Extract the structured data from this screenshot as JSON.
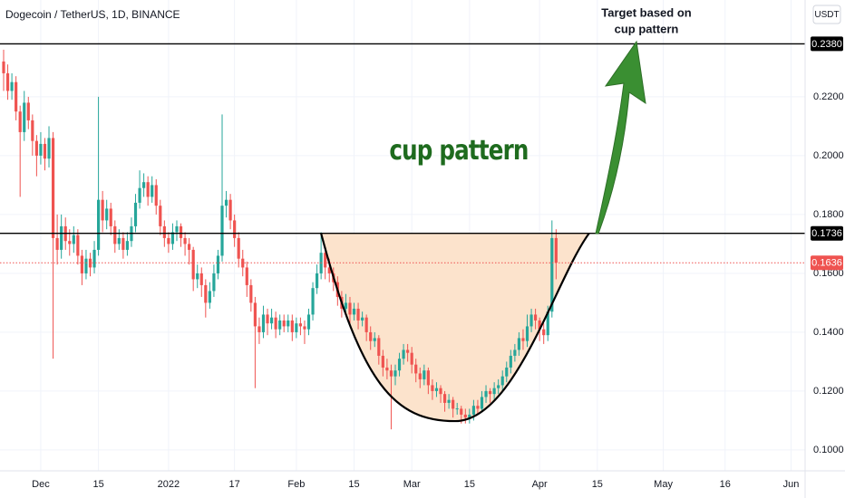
{
  "chart_data": {
    "type": "candlestick",
    "title": "Dogecoin / TetherUS, 1D, BINANCE",
    "currency": "USDT",
    "annotations": [
      "cup pattern",
      "Target based on",
      "cup pattern"
    ],
    "up_color": "#26a69a",
    "down_color": "#ef5350",
    "xlim": [
      -0.88,
      194.4
    ],
    "ylim": [
      0.0929,
      0.2529
    ],
    "yticks": [
      {
        "value": 0.1,
        "label": "0.1000"
      },
      {
        "value": 0.12,
        "label": "0.1200"
      },
      {
        "value": 0.14,
        "label": "0.1400"
      },
      {
        "value": 0.16,
        "label": "0.1600"
      },
      {
        "value": 0.18,
        "label": "0.1800"
      },
      {
        "value": 0.2,
        "label": "0.2000"
      },
      {
        "value": 0.22,
        "label": "0.2200"
      }
    ],
    "xticks": [
      {
        "value": 9,
        "label": "Dec"
      },
      {
        "value": 23,
        "label": "15"
      },
      {
        "value": 40,
        "label": "2022"
      },
      {
        "value": 56,
        "label": "17"
      },
      {
        "value": 71,
        "label": "Feb"
      },
      {
        "value": 85,
        "label": "15"
      },
      {
        "value": 99,
        "label": "Mar"
      },
      {
        "value": 113,
        "label": "15"
      },
      {
        "value": 130,
        "label": "Apr"
      },
      {
        "value": 144,
        "label": "15"
      },
      {
        "value": 160,
        "label": "May"
      },
      {
        "value": 175,
        "label": "16"
      },
      {
        "value": 191,
        "label": "Jun"
      }
    ],
    "hlines": [
      {
        "value": 0.238,
        "label": "0.2380",
        "color": "#000000",
        "style": "solid"
      },
      {
        "value": 0.1736,
        "label": "0.1736",
        "color": "#000000",
        "style": "solid"
      },
      {
        "value": 0.1636,
        "label": "0.1636",
        "color": "#ef5350",
        "style": "dotted"
      }
    ],
    "cup": {
      "x": [
        77,
        109.5,
        142
      ],
      "y": [
        0.1736,
        0.1098,
        0.1736
      ],
      "fill": "#fce3cc"
    },
    "ohlc": [
      [
        0.232,
        0.236,
        0.222,
        0.228
      ],
      [
        0.228,
        0.231,
        0.219,
        0.222
      ],
      [
        0.222,
        0.228,
        0.219,
        0.225
      ],
      [
        0.225,
        0.227,
        0.212,
        0.215
      ],
      [
        0.215,
        0.217,
        0.186,
        0.208
      ],
      [
        0.208,
        0.222,
        0.205,
        0.218
      ],
      [
        0.218,
        0.22,
        0.209,
        0.212
      ],
      [
        0.212,
        0.214,
        0.2,
        0.205
      ],
      [
        0.205,
        0.207,
        0.193,
        0.2
      ],
      [
        0.2,
        0.208,
        0.197,
        0.204
      ],
      [
        0.204,
        0.206,
        0.195,
        0.199
      ],
      [
        0.199,
        0.21,
        0.196,
        0.206
      ],
      [
        0.206,
        0.208,
        0.131,
        0.172
      ],
      [
        0.172,
        0.18,
        0.163,
        0.168
      ],
      [
        0.168,
        0.18,
        0.165,
        0.176
      ],
      [
        0.176,
        0.179,
        0.168,
        0.171
      ],
      [
        0.171,
        0.175,
        0.166,
        0.17
      ],
      [
        0.17,
        0.176,
        0.167,
        0.173
      ],
      [
        0.173,
        0.175,
        0.163,
        0.166
      ],
      [
        0.166,
        0.168,
        0.156,
        0.16
      ],
      [
        0.16,
        0.168,
        0.158,
        0.165
      ],
      [
        0.165,
        0.167,
        0.159,
        0.162
      ],
      [
        0.162,
        0.171,
        0.16,
        0.168
      ],
      [
        0.168,
        0.22,
        0.166,
        0.185
      ],
      [
        0.185,
        0.188,
        0.174,
        0.178
      ],
      [
        0.178,
        0.185,
        0.175,
        0.182
      ],
      [
        0.182,
        0.184,
        0.173,
        0.176
      ],
      [
        0.176,
        0.178,
        0.167,
        0.17
      ],
      [
        0.17,
        0.175,
        0.168,
        0.172
      ],
      [
        0.172,
        0.174,
        0.165,
        0.168
      ],
      [
        0.168,
        0.174,
        0.166,
        0.171
      ],
      [
        0.171,
        0.179,
        0.169,
        0.176
      ],
      [
        0.176,
        0.187,
        0.174,
        0.184
      ],
      [
        0.184,
        0.195,
        0.182,
        0.189
      ],
      [
        0.189,
        0.194,
        0.186,
        0.191
      ],
      [
        0.191,
        0.193,
        0.183,
        0.186
      ],
      [
        0.186,
        0.193,
        0.184,
        0.19
      ],
      [
        0.19,
        0.192,
        0.18,
        0.183
      ],
      [
        0.183,
        0.185,
        0.173,
        0.176
      ],
      [
        0.176,
        0.178,
        0.169,
        0.172
      ],
      [
        0.172,
        0.174,
        0.167,
        0.17
      ],
      [
        0.17,
        0.177,
        0.168,
        0.174
      ],
      [
        0.174,
        0.178,
        0.171,
        0.176
      ],
      [
        0.176,
        0.177,
        0.169,
        0.172
      ],
      [
        0.172,
        0.174,
        0.166,
        0.17
      ],
      [
        0.17,
        0.172,
        0.163,
        0.168
      ],
      [
        0.168,
        0.169,
        0.154,
        0.158
      ],
      [
        0.158,
        0.163,
        0.155,
        0.16
      ],
      [
        0.16,
        0.162,
        0.152,
        0.156
      ],
      [
        0.156,
        0.158,
        0.145,
        0.15
      ],
      [
        0.15,
        0.157,
        0.148,
        0.154
      ],
      [
        0.154,
        0.163,
        0.152,
        0.16
      ],
      [
        0.16,
        0.168,
        0.158,
        0.166
      ],
      [
        0.166,
        0.214,
        0.164,
        0.183
      ],
      [
        0.183,
        0.188,
        0.179,
        0.185
      ],
      [
        0.185,
        0.187,
        0.175,
        0.178
      ],
      [
        0.178,
        0.18,
        0.169,
        0.172
      ],
      [
        0.172,
        0.174,
        0.162,
        0.165
      ],
      [
        0.165,
        0.168,
        0.159,
        0.162
      ],
      [
        0.162,
        0.164,
        0.152,
        0.156
      ],
      [
        0.156,
        0.158,
        0.147,
        0.15
      ],
      [
        0.15,
        0.152,
        0.121,
        0.142
      ],
      [
        0.142,
        0.145,
        0.136,
        0.14
      ],
      [
        0.14,
        0.149,
        0.138,
        0.146
      ],
      [
        0.146,
        0.148,
        0.139,
        0.143
      ],
      [
        0.143,
        0.148,
        0.141,
        0.145
      ],
      [
        0.145,
        0.147,
        0.138,
        0.141
      ],
      [
        0.141,
        0.146,
        0.139,
        0.144
      ],
      [
        0.144,
        0.146,
        0.14,
        0.142
      ],
      [
        0.142,
        0.146,
        0.14,
        0.144
      ],
      [
        0.144,
        0.146,
        0.137,
        0.14
      ],
      [
        0.14,
        0.145,
        0.138,
        0.143
      ],
      [
        0.143,
        0.145,
        0.139,
        0.142
      ],
      [
        0.142,
        0.144,
        0.136,
        0.141
      ],
      [
        0.141,
        0.148,
        0.139,
        0.146
      ],
      [
        0.146,
        0.157,
        0.144,
        0.155
      ],
      [
        0.155,
        0.163,
        0.153,
        0.16
      ],
      [
        0.16,
        0.174,
        0.158,
        0.167
      ],
      [
        0.167,
        0.169,
        0.158,
        0.162
      ],
      [
        0.162,
        0.165,
        0.157,
        0.16
      ],
      [
        0.16,
        0.162,
        0.154,
        0.157
      ],
      [
        0.157,
        0.159,
        0.149,
        0.152
      ],
      [
        0.152,
        0.154,
        0.145,
        0.148
      ],
      [
        0.148,
        0.153,
        0.146,
        0.15
      ],
      [
        0.15,
        0.152,
        0.143,
        0.146
      ],
      [
        0.146,
        0.15,
        0.144,
        0.148
      ],
      [
        0.148,
        0.15,
        0.141,
        0.144
      ],
      [
        0.144,
        0.147,
        0.142,
        0.145
      ],
      [
        0.145,
        0.146,
        0.137,
        0.14
      ],
      [
        0.14,
        0.142,
        0.134,
        0.137
      ],
      [
        0.137,
        0.14,
        0.135,
        0.138
      ],
      [
        0.138,
        0.139,
        0.129,
        0.132
      ],
      [
        0.132,
        0.134,
        0.125,
        0.128
      ],
      [
        0.128,
        0.131,
        0.124,
        0.127
      ],
      [
        0.127,
        0.129,
        0.107,
        0.125
      ],
      [
        0.125,
        0.129,
        0.122,
        0.127
      ],
      [
        0.127,
        0.133,
        0.125,
        0.131
      ],
      [
        0.131,
        0.136,
        0.129,
        0.134
      ],
      [
        0.134,
        0.136,
        0.13,
        0.133
      ],
      [
        0.133,
        0.135,
        0.126,
        0.129
      ],
      [
        0.129,
        0.131,
        0.123,
        0.126
      ],
      [
        0.126,
        0.128,
        0.121,
        0.124
      ],
      [
        0.124,
        0.129,
        0.122,
        0.127
      ],
      [
        0.127,
        0.128,
        0.119,
        0.122
      ],
      [
        0.122,
        0.124,
        0.117,
        0.12
      ],
      [
        0.12,
        0.123,
        0.118,
        0.121
      ],
      [
        0.121,
        0.122,
        0.116,
        0.119
      ],
      [
        0.119,
        0.12,
        0.113,
        0.116
      ],
      [
        0.116,
        0.119,
        0.114,
        0.117
      ],
      [
        0.117,
        0.118,
        0.111,
        0.114
      ],
      [
        0.114,
        0.116,
        0.112,
        0.1141
      ],
      [
        0.114,
        0.115,
        0.109,
        0.112
      ],
      [
        0.112,
        0.114,
        0.109,
        0.111
      ],
      [
        0.111,
        0.114,
        0.109,
        0.112
      ],
      [
        0.112,
        0.117,
        0.11,
        0.115
      ],
      [
        0.115,
        0.117,
        0.112,
        0.114
      ],
      [
        0.114,
        0.12,
        0.113,
        0.118
      ],
      [
        0.118,
        0.122,
        0.116,
        0.12
      ],
      [
        0.12,
        0.121,
        0.116,
        0.119
      ],
      [
        0.119,
        0.123,
        0.117,
        0.121
      ],
      [
        0.121,
        0.124,
        0.119,
        0.122
      ],
      [
        0.122,
        0.127,
        0.12,
        0.125
      ],
      [
        0.125,
        0.13,
        0.123,
        0.128
      ],
      [
        0.128,
        0.134,
        0.126,
        0.132
      ],
      [
        0.132,
        0.136,
        0.13,
        0.134
      ],
      [
        0.134,
        0.14,
        0.132,
        0.138
      ],
      [
        0.138,
        0.141,
        0.134,
        0.137
      ],
      [
        0.137,
        0.146,
        0.135,
        0.142
      ],
      [
        0.142,
        0.148,
        0.14,
        0.146
      ],
      [
        0.146,
        0.148,
        0.141,
        0.144
      ],
      [
        0.144,
        0.145,
        0.137,
        0.141
      ],
      [
        0.141,
        0.143,
        0.136,
        0.139
      ],
      [
        0.139,
        0.149,
        0.137,
        0.147
      ],
      [
        0.147,
        0.178,
        0.145,
        0.172
      ],
      [
        0.172,
        0.175,
        0.158,
        0.1636
      ]
    ]
  }
}
